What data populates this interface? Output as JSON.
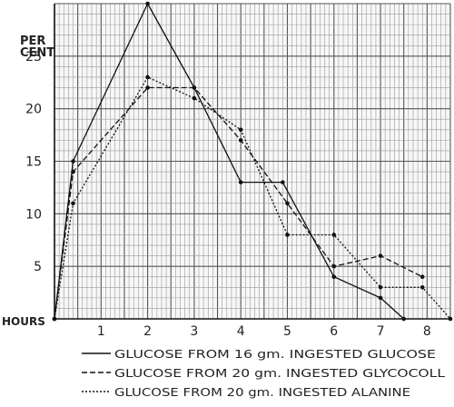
{
  "chart_data": {
    "type": "line",
    "y_unit_label": [
      "PER",
      "CENT"
    ],
    "x_unit_label": "HOURS",
    "x_ticks": [
      1,
      2,
      3,
      4,
      5,
      6,
      7,
      8
    ],
    "y_ticks": [
      5,
      10,
      15,
      20,
      25
    ],
    "xlim": [
      0,
      8.5
    ],
    "ylim": [
      0,
      30
    ],
    "grid": true,
    "legend_position": "bottom",
    "series": [
      {
        "name": "GLUCOSE FROM 16 gm. INGESTED GLUCOSE",
        "style": "solid",
        "points": [
          [
            0,
            0
          ],
          [
            0.4,
            15
          ],
          [
            2,
            30
          ],
          [
            3,
            22
          ],
          [
            4,
            13
          ],
          [
            4.9,
            13
          ],
          [
            6,
            4
          ],
          [
            7,
            2
          ],
          [
            7.5,
            0
          ]
        ]
      },
      {
        "name": "GLUCOSE FROM 20 gm. INGESTED GLYCOCOLL",
        "style": "dashed",
        "points": [
          [
            0,
            0
          ],
          [
            0.4,
            14
          ],
          [
            2,
            22
          ],
          [
            3,
            22
          ],
          [
            4,
            17
          ],
          [
            5,
            11
          ],
          [
            6,
            5
          ],
          [
            7,
            6
          ],
          [
            7.9,
            4
          ]
        ]
      },
      {
        "name": "GLUCOSE FROM 20 gm. INGESTED ALANINE",
        "style": "dotted",
        "points": [
          [
            0,
            0
          ],
          [
            0.4,
            11
          ],
          [
            2,
            23
          ],
          [
            3,
            21
          ],
          [
            4,
            18
          ],
          [
            5,
            8
          ],
          [
            6,
            8
          ],
          [
            7,
            3
          ],
          [
            7.9,
            3
          ],
          [
            8.5,
            0
          ]
        ]
      }
    ]
  }
}
